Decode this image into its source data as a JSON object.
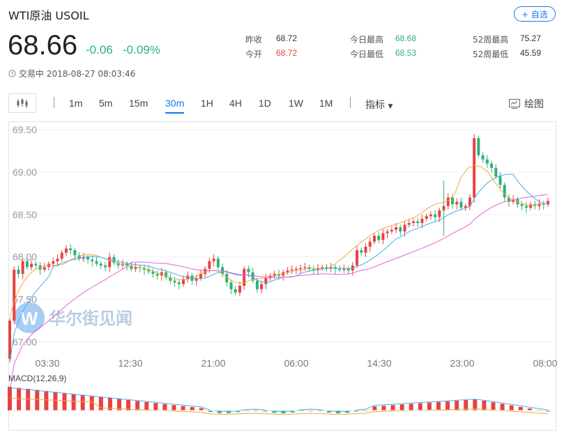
{
  "header": {
    "title": "WTI原油  USOIL",
    "follow_label": "+ 自选",
    "price": "68.66",
    "change": "-0.06",
    "change_pct": "-0.09%",
    "status": "交易中 2018-08-27 08:03:46"
  },
  "stats": {
    "prev_close_label": "昨收",
    "prev_close": "68.72",
    "open_label": "今开",
    "open": "68.72",
    "day_high_label": "今日最高",
    "day_high": "68.68",
    "day_low_label": "今日最低",
    "day_low": "68.53",
    "wk52_high_label": "52周最高",
    "wk52_high": "75.27",
    "wk52_low_label": "52周最低",
    "wk52_low": "45.59"
  },
  "toolbar": {
    "periods": [
      "1m",
      "5m",
      "15m",
      "30m",
      "1H",
      "4H",
      "1D",
      "1W",
      "1M"
    ],
    "active_period": "30m",
    "indicator_label": "指标",
    "draw_label": "绘图"
  },
  "colors": {
    "up": "#e94141",
    "down": "#2db17a",
    "ma_short": "#f2a93b",
    "ma_mid": "#45b0e8",
    "ma_long": "#e95fd6",
    "accent": "#1478f0"
  },
  "watermark": "华尔街见闻",
  "chart_data": {
    "type": "candlestick",
    "interval": "30m",
    "y_ticks": [
      "69.50",
      "69.00",
      "68.50",
      "68.00",
      "67.50",
      "67.00"
    ],
    "x_ticks": [
      "03:30",
      "12:30",
      "21:00",
      "06:00",
      "14:30",
      "23:00",
      "08:00"
    ],
    "ylim": [
      66.88,
      69.55
    ],
    "series": [
      {
        "name": "price",
        "values": [
          67.25,
          67.85,
          67.8,
          67.95,
          67.88,
          67.92,
          67.9,
          67.85,
          67.88,
          67.92,
          67.95,
          67.98,
          68.05,
          68.1,
          68.08,
          68.02,
          67.98,
          68.0,
          67.97,
          67.95,
          67.92,
          67.9,
          67.88,
          68.0,
          67.93,
          67.9,
          67.92,
          67.9,
          67.86,
          67.88,
          67.87,
          67.85,
          67.83,
          67.8,
          67.78,
          67.82,
          67.76,
          67.72,
          67.7,
          67.68,
          67.74,
          67.78,
          67.72,
          67.75,
          67.8,
          67.86,
          67.95,
          67.98,
          67.88,
          67.8,
          67.7,
          67.62,
          67.58,
          67.66,
          67.86,
          67.82,
          67.72,
          67.62,
          67.68,
          67.75,
          67.78,
          67.8,
          67.78,
          67.82,
          67.84,
          67.85,
          67.86,
          67.87,
          67.88,
          67.86,
          67.85,
          67.87,
          67.88,
          67.87,
          67.88,
          67.86,
          67.85,
          67.86,
          67.84,
          67.9,
          68.08,
          68.05,
          68.12,
          68.18,
          68.25,
          68.2,
          68.28,
          68.3,
          68.32,
          68.35,
          68.3,
          68.38,
          68.4,
          68.42,
          68.4,
          68.45,
          68.48,
          68.5,
          68.47,
          68.55,
          68.6,
          68.7,
          68.62,
          68.65,
          68.58,
          68.6,
          68.7,
          69.4,
          69.2,
          69.15,
          69.1,
          69.05,
          68.95,
          68.85,
          68.7,
          68.65,
          68.68,
          68.62,
          68.6,
          68.58,
          68.62,
          68.6,
          68.63,
          68.62,
          68.66
        ]
      },
      {
        "name": "MA-short",
        "values": [
          67.3,
          67.55,
          67.7,
          67.8,
          67.86,
          67.89,
          67.9,
          67.9,
          67.91,
          67.96,
          68.0,
          68.02,
          68.03,
          68.02,
          67.99,
          67.96,
          67.93,
          67.91,
          67.89,
          67.88,
          67.87,
          67.85,
          67.82,
          67.79,
          67.76,
          67.74,
          67.73,
          67.74,
          67.77,
          67.81,
          67.84,
          67.84,
          67.8,
          67.74,
          67.7,
          67.69,
          67.72,
          67.74,
          67.75,
          67.76,
          67.78,
          67.8,
          67.82,
          67.84,
          67.85,
          67.86,
          67.86,
          67.86,
          67.87,
          67.92,
          67.98,
          68.05,
          68.12,
          68.18,
          68.24,
          68.29,
          68.33,
          68.36,
          68.38,
          68.41,
          68.44,
          68.47,
          68.52,
          68.58,
          68.62,
          68.64,
          68.66,
          68.75,
          68.95,
          69.05,
          69.08,
          69.06,
          69.0,
          68.88,
          68.78,
          68.7,
          68.66,
          68.63,
          68.61,
          68.61,
          68.62,
          68.63
        ]
      }
    ],
    "macd": {
      "label": "MACD(12,26,9)"
    }
  }
}
